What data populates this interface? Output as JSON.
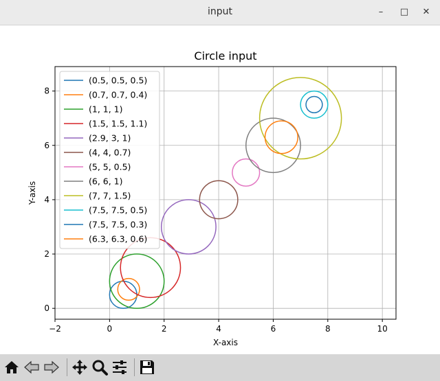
{
  "window": {
    "title": "input"
  },
  "toolbar": {
    "buttons": [
      {
        "id": "home",
        "icon": "home-icon"
      },
      {
        "id": "back",
        "icon": "back-arrow-icon"
      },
      {
        "id": "forward",
        "icon": "forward-arrow-icon"
      },
      {
        "id": "pan",
        "icon": "pan-move-icon"
      },
      {
        "id": "zoom",
        "icon": "zoom-magnifier-icon"
      },
      {
        "id": "configure",
        "icon": "configure-subplots-icon"
      },
      {
        "id": "save",
        "icon": "save-floppy-icon"
      }
    ]
  },
  "chart_data": {
    "type": "scatter",
    "title": "Circle input",
    "xlabel": "X-axis",
    "ylabel": "Y-axis",
    "xlim": [
      -2,
      10.5
    ],
    "ylim": [
      -0.4,
      8.9
    ],
    "xticks": [
      -2,
      0,
      2,
      4,
      6,
      8,
      10
    ],
    "yticks": [
      0,
      2,
      4,
      6,
      8
    ],
    "grid": true,
    "legend_position": "upper-left",
    "series": [
      {
        "name": "(0.5, 0.5, 0.5)",
        "x": 0.5,
        "y": 0.5,
        "r": 0.5,
        "color": "#1f77b4"
      },
      {
        "name": "(0.7, 0.7, 0.4)",
        "x": 0.7,
        "y": 0.7,
        "r": 0.4,
        "color": "#ff7f0e"
      },
      {
        "name": "(1, 1, 1)",
        "x": 1,
        "y": 1,
        "r": 1,
        "color": "#2ca02c"
      },
      {
        "name": "(1.5, 1.5, 1.1)",
        "x": 1.5,
        "y": 1.5,
        "r": 1.1,
        "color": "#d62728"
      },
      {
        "name": "(2.9, 3, 1)",
        "x": 2.9,
        "y": 3,
        "r": 1,
        "color": "#9467bd"
      },
      {
        "name": "(4, 4, 0.7)",
        "x": 4,
        "y": 4,
        "r": 0.7,
        "color": "#8c564b"
      },
      {
        "name": "(5, 5, 0.5)",
        "x": 5,
        "y": 5,
        "r": 0.5,
        "color": "#e377c2"
      },
      {
        "name": "(6, 6, 1)",
        "x": 6,
        "y": 6,
        "r": 1,
        "color": "#7f7f7f"
      },
      {
        "name": "(7, 7, 1.5)",
        "x": 7,
        "y": 7,
        "r": 1.5,
        "color": "#bcbd22"
      },
      {
        "name": "(7.5, 7.5, 0.5)",
        "x": 7.5,
        "y": 7.5,
        "r": 0.5,
        "color": "#17becf"
      },
      {
        "name": "(7.5, 7.5, 0.3)",
        "x": 7.5,
        "y": 7.5,
        "r": 0.3,
        "color": "#1f77b4"
      },
      {
        "name": "(6.3, 6.3, 0.6)",
        "x": 6.3,
        "y": 6.3,
        "r": 0.6,
        "color": "#ff7f0e"
      }
    ]
  }
}
